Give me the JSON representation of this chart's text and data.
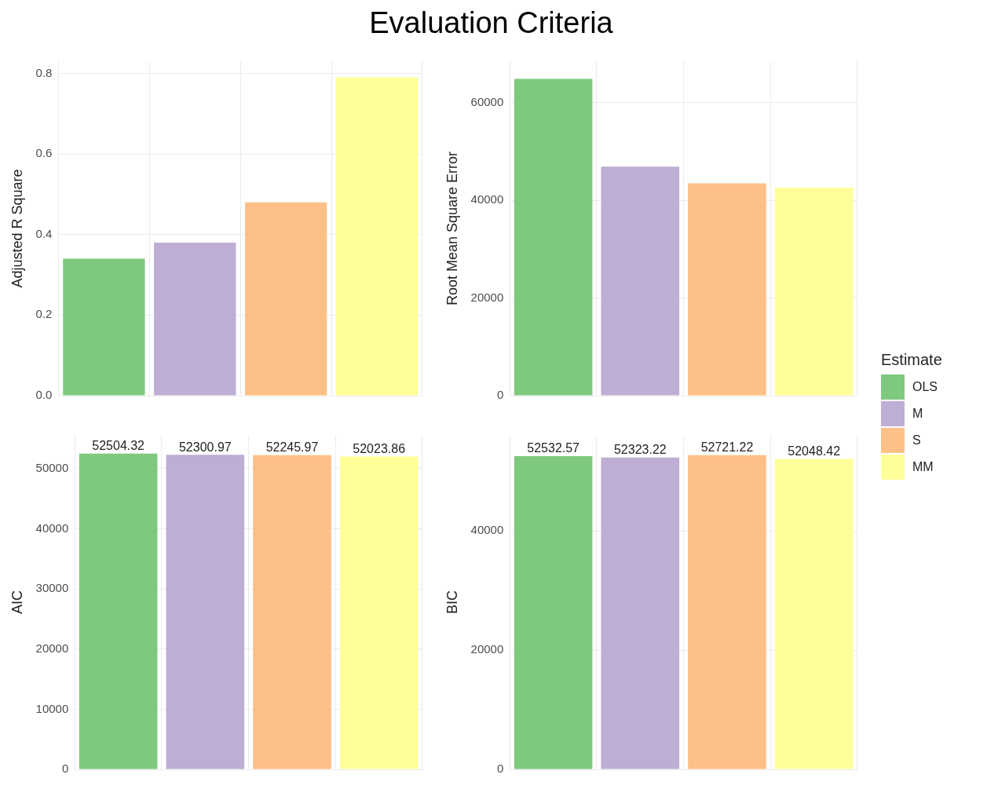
{
  "chart_data": [
    {
      "type": "bar",
      "title": "Evaluation Criteria",
      "ylabel": "Adjusted R Square",
      "categories": [
        null,
        null,
        null,
        null
      ],
      "series": [
        {
          "name": "OLS",
          "color": "#7fc97f",
          "values": [
            0.34,
            null,
            null,
            null
          ]
        },
        {
          "name": "M",
          "color": "#beaed4",
          "values": [
            null,
            0.38,
            null,
            null
          ]
        },
        {
          "name": "S",
          "color": "#fdc086",
          "values": [
            null,
            null,
            0.48,
            null
          ]
        },
        {
          "name": "MM",
          "color": "#ffff99",
          "values": [
            null,
            null,
            null,
            0.79
          ]
        }
      ],
      "ylim": [
        0,
        0.83
      ],
      "yticks": [
        {
          "value": 0,
          "label": "0.0"
        },
        0.2,
        0.4,
        0.6,
        0.8
      ],
      "grid": true,
      "tick_labels": "y",
      "legend": "right",
      "legend_title": "Estimate"
    },
    {
      "type": "bar",
      "ylabel": "Root Mean Square Error",
      "categories": [
        null,
        null,
        null,
        null
      ],
      "series": [
        {
          "color": "#7fc97f",
          "values": [
            64900,
            null,
            null,
            null
          ]
        },
        {
          "color": "#beaed4",
          "values": [
            null,
            46900,
            null,
            null
          ]
        },
        {
          "color": "#fdc086",
          "values": [
            null,
            null,
            43500,
            null
          ]
        },
        {
          "color": "#ffff99",
          "values": [
            null,
            null,
            null,
            42600
          ]
        }
      ],
      "ylim": [
        0,
        68500
      ],
      "yticks": [
        0,
        20000,
        40000,
        60000
      ],
      "grid": true,
      "tick_labels": "y"
    },
    {
      "type": "bar",
      "ylabel": "AIC",
      "categories": [
        null,
        null,
        null,
        null
      ],
      "series": [
        {
          "color": "#7fc97f",
          "values": [
            52504.32,
            null,
            null,
            null
          ]
        },
        {
          "color": "#beaed4",
          "values": [
            null,
            52300.97,
            null,
            null
          ]
        },
        {
          "color": "#fdc086",
          "values": [
            null,
            null,
            52245.97,
            null
          ]
        },
        {
          "color": "#ffff99",
          "values": [
            null,
            null,
            null,
            52023.86
          ]
        }
      ],
      "ylim": [
        0,
        55600
      ],
      "yticks": [
        0,
        10000,
        20000,
        30000,
        40000,
        50000
      ],
      "grid": true,
      "tick_labels": "y",
      "data_labels": true
    },
    {
      "type": "bar",
      "ylabel": "BIC",
      "categories": [
        null,
        null,
        null,
        null
      ],
      "series": [
        {
          "color": "#7fc97f",
          "values": [
            52532.57,
            null,
            null,
            null
          ]
        },
        {
          "color": "#beaed4",
          "values": [
            null,
            52323.22,
            null,
            null
          ]
        },
        {
          "color": "#fdc086",
          "values": [
            null,
            null,
            52721.22,
            null
          ]
        },
        {
          "color": "#ffff99",
          "values": [
            null,
            null,
            null,
            52048.42
          ]
        }
      ],
      "ylim": [
        0,
        56100
      ],
      "yticks": [
        0,
        20000,
        40000
      ],
      "grid": true,
      "tick_labels": "y",
      "data_labels": true
    }
  ]
}
